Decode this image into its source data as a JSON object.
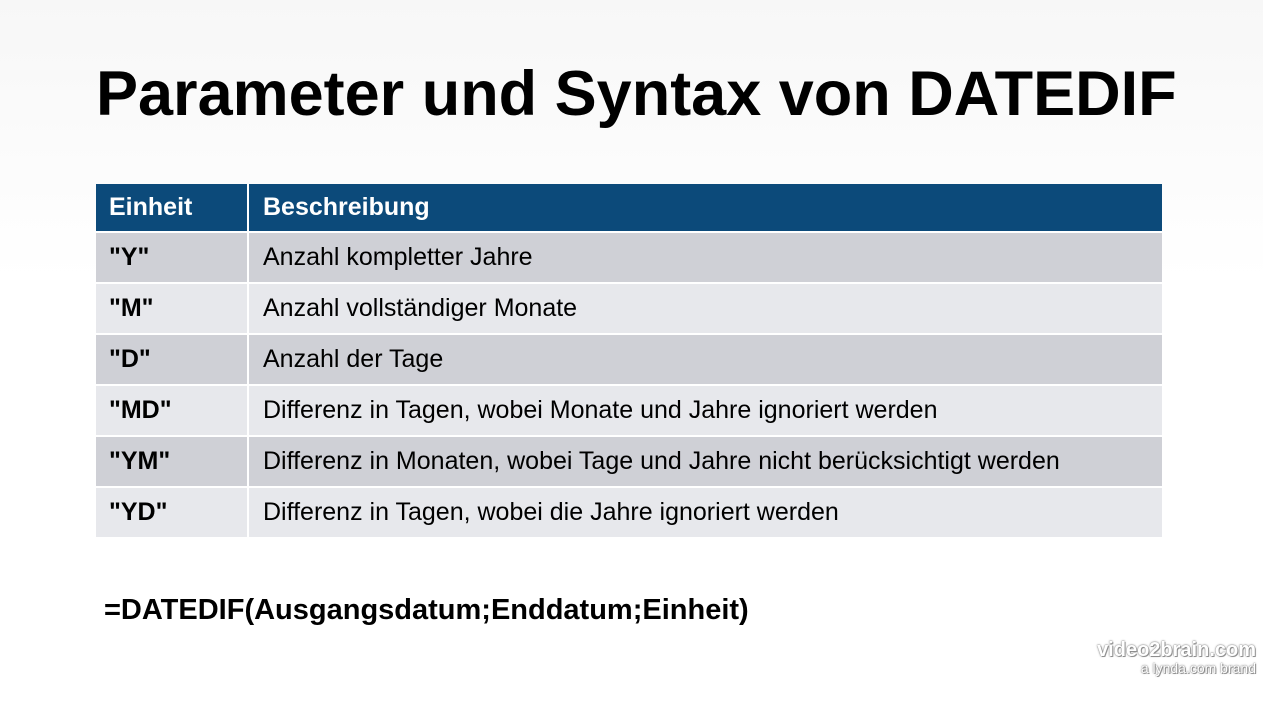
{
  "slide": {
    "title": "Parameter und Syntax von DATEDIF"
  },
  "table": {
    "headers": {
      "unit": "Einheit",
      "description": "Beschreibung"
    },
    "rows": [
      {
        "unit": "\"Y\"",
        "description": "Anzahl kompletter Jahre"
      },
      {
        "unit": "\"M\"",
        "description": "Anzahl vollständiger Monate"
      },
      {
        "unit": "\"D\"",
        "description": "Anzahl der Tage"
      },
      {
        "unit": "\"MD\"",
        "description": "Differenz in Tagen, wobei Monate und Jahre ignoriert werden"
      },
      {
        "unit": "\"YM\"",
        "description": "Differenz in Monaten, wobei Tage und Jahre nicht berücksichtigt werden"
      },
      {
        "unit": "\"YD\"",
        "description": "Differenz in Tagen, wobei die Jahre ignoriert werden"
      }
    ]
  },
  "syntax": "=DATEDIF(Ausgangsdatum;Enddatum;Einheit)",
  "watermark": {
    "brand": "video2brain.com",
    "tagline": "a lynda.com brand"
  },
  "colors": {
    "header_bg": "#0c4a7a",
    "row_odd": "#cfd0d6",
    "row_even": "#e7e8ec"
  }
}
